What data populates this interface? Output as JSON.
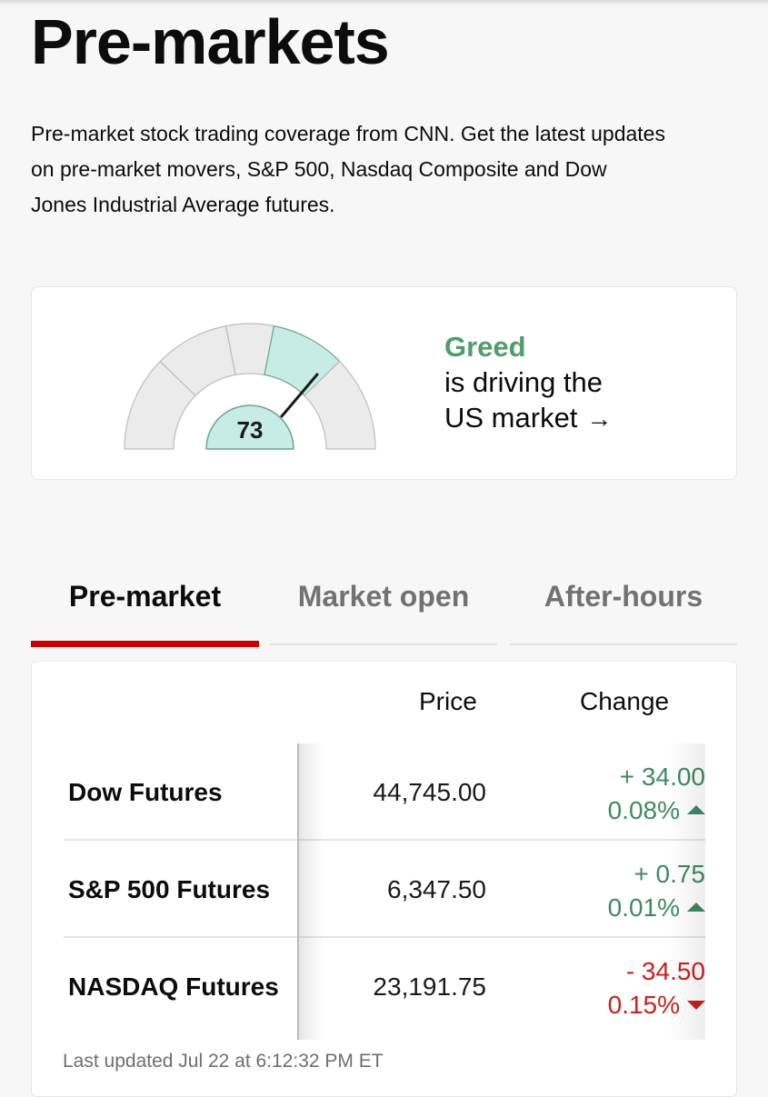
{
  "page": {
    "title": "Pre-markets",
    "description": "Pre-market stock trading coverage from CNN. Get the latest updates on pre-market movers, S&P 500, Nasdaq Composite and Dow Jones Industrial Average futures."
  },
  "fear_greed": {
    "value": "73",
    "label": "Greed",
    "line1": "is driving the",
    "line2": "US market",
    "arrow": "→",
    "colors": {
      "active": "#c6ece5",
      "inactive": "#ebebeb",
      "label": "#4f9c6d"
    }
  },
  "tabs": [
    {
      "label": "Pre-market",
      "active": true
    },
    {
      "label": "Market open",
      "active": false
    },
    {
      "label": "After-hours",
      "active": false
    }
  ],
  "table": {
    "columns": {
      "price": "Price",
      "change": "Change"
    },
    "rows": [
      {
        "name": "Dow Futures",
        "price": "44,745.00",
        "change": "+ 34.00",
        "percent": "0.08%",
        "direction": "up"
      },
      {
        "name": "S&P 500 Futures",
        "price": "6,347.50",
        "change": "+ 0.75",
        "percent": "0.01%",
        "direction": "up"
      },
      {
        "name": "NASDAQ Futures",
        "price": "23,191.75",
        "change": "- 34.50",
        "percent": "0.15%",
        "direction": "down"
      }
    ],
    "updated": "Last updated Jul 22 at 6:12:32 PM ET"
  }
}
